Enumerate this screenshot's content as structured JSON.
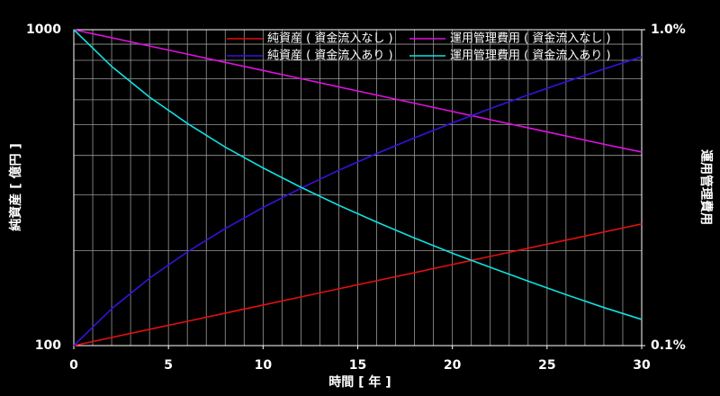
{
  "chart_data": {
    "type": "line",
    "x": [
      0,
      2,
      4,
      6,
      8,
      10,
      12,
      14,
      16,
      18,
      20,
      22,
      24,
      26,
      28,
      30
    ],
    "series": [
      {
        "name": "純資産 ( 資金流入なし )",
        "color": "#e01010",
        "values": [
          100,
          106.1,
          112.6,
          119.4,
          126.7,
          134.4,
          142.6,
          151.3,
          160.5,
          170.2,
          180.6,
          191.6,
          203.3,
          215.7,
          228.8,
          242.7
        ]
      },
      {
        "name": "運用管理費用 ( 資金流入なし )",
        "color": "#e010e0",
        "axis": "y2",
        "values": [
          1.0,
          0.943,
          0.888,
          0.837,
          0.788,
          0.743,
          0.7,
          0.659,
          0.621,
          0.585,
          0.551,
          0.519,
          0.489,
          0.461,
          0.434,
          0.41
        ]
      },
      {
        "name": "純資産 ( 資金流入あり )",
        "color": "#3a10e0",
        "values": [
          100,
          130.8,
          163.4,
          198.0,
          234.7,
          273.7,
          315.0,
          358.9,
          405.4,
          454.7,
          507,
          562.6,
          621.6,
          684.1,
          750.4,
          821
        ]
      },
      {
        "name": "運用管理費用 ( 資金流入あり )",
        "color": "#10e0e0",
        "axis": "y2",
        "values": [
          1.0,
          0.765,
          0.612,
          0.505,
          0.425,
          0.365,
          0.317,
          0.278,
          0.246,
          0.219,
          0.196,
          0.177,
          0.16,
          0.145,
          0.132,
          0.121
        ]
      }
    ],
    "xlabel": "時間 [ 年 ]",
    "ylabel": "純資産 [ 億円 ]",
    "y2label": "運用管理費用",
    "xlim": [
      0,
      30
    ],
    "xticks": [
      0,
      5,
      10,
      15,
      20,
      25,
      30
    ],
    "ylim": [
      100,
      1000
    ],
    "yticks": [
      100,
      1000
    ],
    "y2lim": [
      0.1,
      1.0
    ],
    "y2ticks": [
      {
        "value": 1.0,
        "label": "1.0%"
      },
      {
        "value": 0.1,
        "label": "0.1%"
      }
    ],
    "log_y": true,
    "grid": true,
    "legend": "upper center"
  }
}
